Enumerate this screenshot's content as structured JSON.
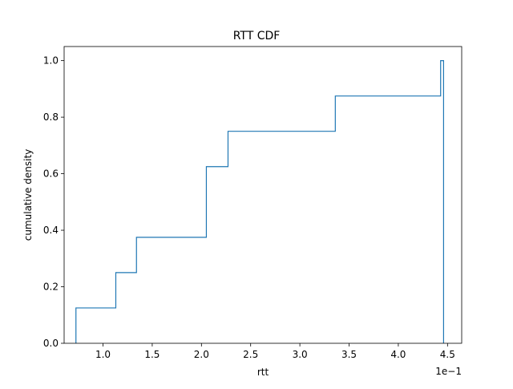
{
  "chart_data": {
    "type": "line",
    "title": "RTT CDF",
    "xlabel": "rtt",
    "ylabel": "cumulative density",
    "x_offset_text": "1e−1",
    "xlim": [
      0.0605,
      0.4644
    ],
    "ylim": [
      0.0,
      1.05
    ],
    "xticks": [
      0.1,
      0.15,
      0.2,
      0.25,
      0.3,
      0.35,
      0.4,
      0.45
    ],
    "xtick_labels": [
      "1.0",
      "1.5",
      "2.0",
      "2.5",
      "3.0",
      "3.5",
      "4.0",
      "4.5"
    ],
    "yticks": [
      0.0,
      0.2,
      0.4,
      0.6,
      0.8,
      1.0
    ],
    "ytick_labels": [
      "0.0",
      "0.2",
      "0.4",
      "0.6",
      "0.8",
      "1.0"
    ],
    "grid": false,
    "legend": "none",
    "line_color": "#1f77b4",
    "series": [
      {
        "x": [
          0.0725,
          0.0725,
          0.113,
          0.113,
          0.134,
          0.134,
          0.205,
          0.205,
          0.227,
          0.227,
          0.336,
          0.336,
          0.443,
          0.443,
          0.446,
          0.446
        ],
        "y": [
          0.0,
          0.125,
          0.125,
          0.25,
          0.25,
          0.375,
          0.375,
          0.625,
          0.625,
          0.75,
          0.75,
          0.875,
          0.875,
          1.0,
          1.0,
          0.0
        ]
      }
    ]
  }
}
